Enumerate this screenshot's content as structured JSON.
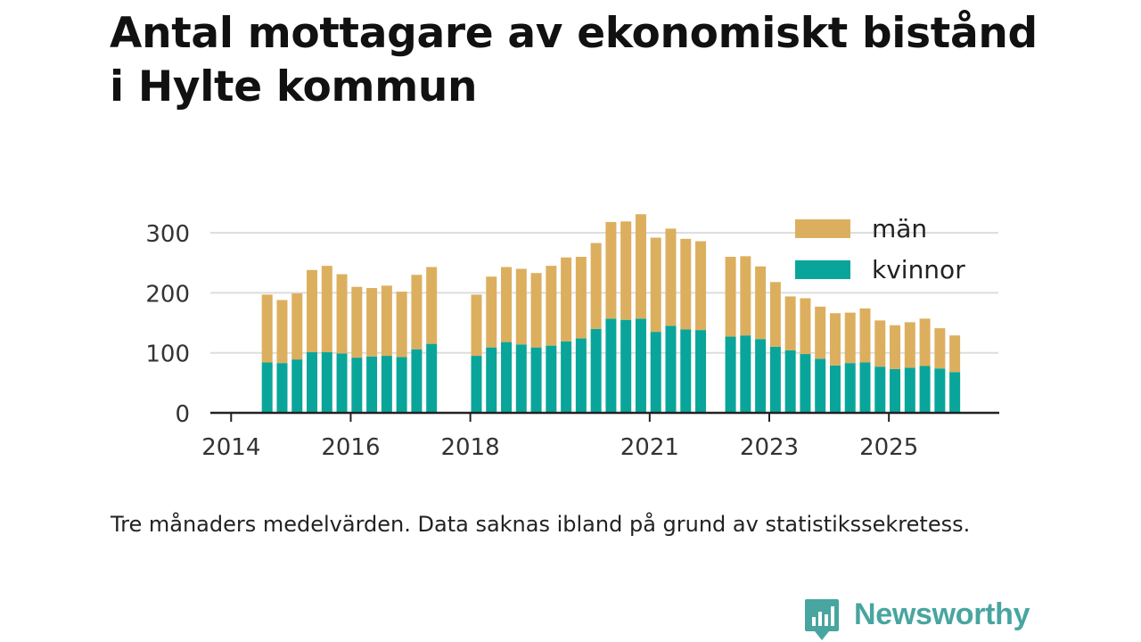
{
  "title_lines": [
    "Antal mottagare av ekonomiskt bistånd",
    "i Hylte kommun"
  ],
  "caption": "Tre månaders medelvärden. Data saknas ibland på grund av statistikssekretess.",
  "brand": {
    "name": "Newsworthy",
    "icon": "newsworthy-logo-icon"
  },
  "colors": {
    "man": "#dcaf5f",
    "kvinnor": "#0aa59a",
    "axis": "#222222",
    "grid": "#dddddd",
    "text": "#333333"
  },
  "chart_data": {
    "type": "bar",
    "stacked": true,
    "title": "Antal mottagare av ekonomiskt bistånd i Hylte kommun",
    "xlabel": "",
    "ylabel": "",
    "ylim": [
      0,
      340
    ],
    "yticks": [
      0,
      100,
      200,
      300
    ],
    "x_tick_labels": [
      "2014",
      "2016",
      "2018",
      "2021",
      "2023",
      "2025"
    ],
    "legend": {
      "position": "top-right",
      "entries": [
        "män",
        "kvinnor"
      ]
    },
    "categories": [
      "2014-Q3",
      "2014-Q4",
      "2015-Q1",
      "2015-Q2",
      "2015-Q3",
      "2015-Q4",
      "2016-Q1",
      "2016-Q2",
      "2016-Q3",
      "2016-Q4",
      "2017-Q1",
      "2017-Q2",
      "2018-Q1",
      "2018-Q2",
      "2018-Q3",
      "2018-Q4",
      "2019-Q1",
      "2019-Q2",
      "2019-Q3",
      "2019-Q4",
      "2020-Q1",
      "2020-Q2",
      "2020-Q3",
      "2020-Q4",
      "2021-Q1",
      "2021-Q2",
      "2021-Q3",
      "2021-Q4",
      "2022-Q2",
      "2022-Q3",
      "2022-Q4",
      "2023-Q1",
      "2023-Q2",
      "2023-Q3",
      "2023-Q4",
      "2024-Q1",
      "2024-Q2",
      "2024-Q3",
      "2024-Q4",
      "2025-Q1",
      "2025-Q2",
      "2025-Q3",
      "2025-Q4",
      "2026-Q1"
    ],
    "series": [
      {
        "name": "kvinnor",
        "values": [
          84,
          83,
          89,
          101,
          101,
          99,
          92,
          94,
          95,
          93,
          106,
          115,
          95,
          109,
          118,
          114,
          109,
          112,
          119,
          124,
          140,
          157,
          155,
          157,
          135,
          145,
          139,
          138,
          127,
          129,
          123,
          110,
          104,
          98,
          90,
          79,
          83,
          84,
          77,
          73,
          75,
          78,
          74,
          68
        ]
      },
      {
        "name": "män",
        "values": [
          113,
          105,
          110,
          137,
          144,
          132,
          118,
          114,
          117,
          109,
          124,
          128,
          102,
          118,
          125,
          126,
          124,
          133,
          140,
          136,
          143,
          161,
          164,
          174,
          157,
          162,
          151,
          148,
          133,
          132,
          121,
          108,
          90,
          93,
          87,
          87,
          84,
          90,
          77,
          73,
          76,
          79,
          67,
          61
        ]
      }
    ]
  }
}
